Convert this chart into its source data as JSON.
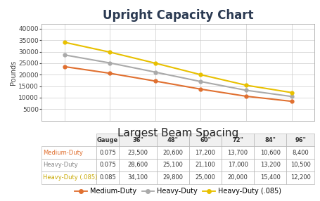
{
  "title": "Upright Capacity Chart",
  "xlabel": "Largest Beam Spacing",
  "ylabel": "Pounds",
  "x_labels": [
    "36\"",
    "48\"",
    "60\"",
    "72\"",
    "84\"",
    "96\""
  ],
  "x_values": [
    36,
    48,
    60,
    72,
    84,
    96
  ],
  "ylim": [
    0,
    42000
  ],
  "yticks": [
    5000,
    10000,
    15000,
    20000,
    25000,
    30000,
    35000,
    40000
  ],
  "series": [
    {
      "name": "Medium-Duty",
      "gauge": "0.075",
      "color": "#E07030",
      "marker": "o",
      "values": [
        23500,
        20600,
        17200,
        13700,
        10600,
        8400
      ]
    },
    {
      "name": "Heavy-Duty",
      "gauge": "0.075",
      "color": "#AAAAAA",
      "marker": "o",
      "values": [
        28600,
        25100,
        21100,
        17000,
        13200,
        10500
      ]
    },
    {
      "name": "Heavy-Duty (.085)",
      "gauge": "0.085",
      "color": "#E8C000",
      "marker": "o",
      "values": [
        34100,
        29800,
        25000,
        20000,
        15400,
        12200
      ]
    }
  ],
  "table_rows": [
    [
      "Medium-Duty",
      "0.075",
      "23,500",
      "20,600",
      "17,200",
      "13,700",
      "10,600",
      "8,400"
    ],
    [
      "Heavy-Duty",
      "0.075",
      "28,600",
      "25,100",
      "21,100",
      "17,000",
      "13,200",
      "10,500"
    ],
    [
      "Heavy-Duty (.085)",
      "0.085",
      "34,100",
      "29,800",
      "25,000",
      "20,000",
      "15,400",
      "12,200"
    ]
  ],
  "row_colors": [
    "#E07030",
    "#888888",
    "#C8A800"
  ],
  "bg_color": "#FFFFFF",
  "grid_color": "#CCCCCC",
  "border_color": "#AAAAAA",
  "title_fontsize": 12,
  "ylabel_fontsize": 7,
  "xlabel_fontsize": 11,
  "tick_fontsize": 6.5,
  "legend_fontsize": 7,
  "table_fontsize": 6
}
